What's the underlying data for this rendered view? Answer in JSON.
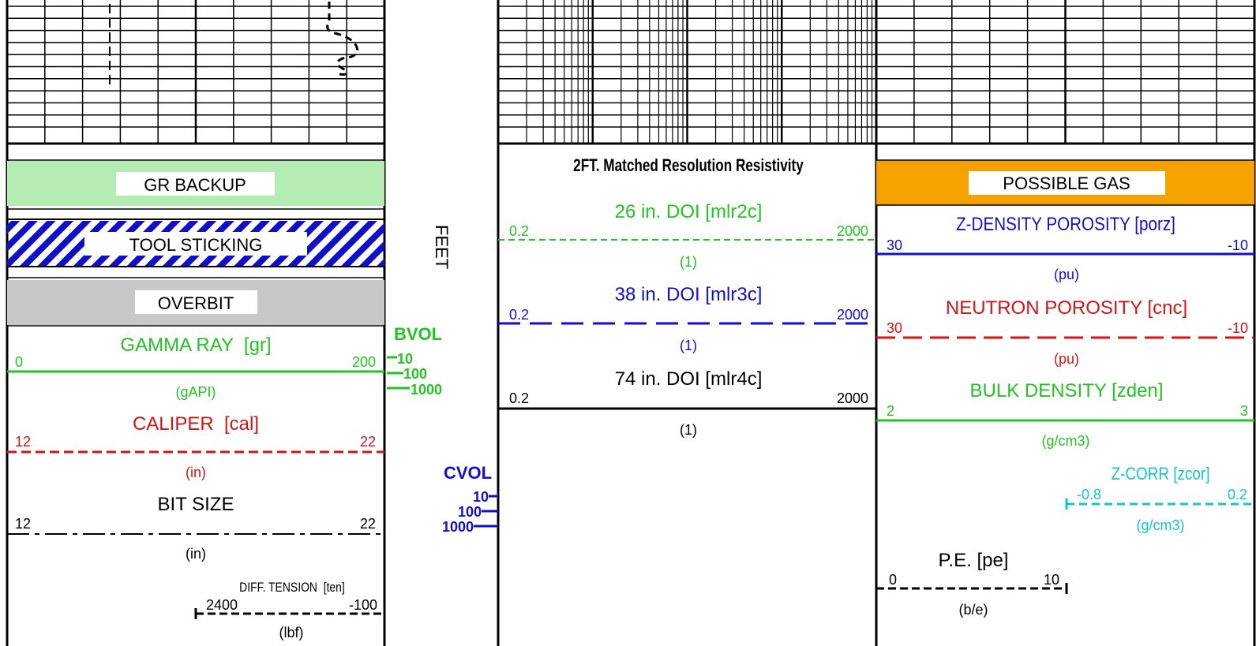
{
  "colors": {
    "green": "#22c322",
    "red": "#d01515",
    "blue": "#1010c8",
    "cyan": "#10c8c8",
    "black": "#000000",
    "gr_backup_fill": "#b4ecb4",
    "possible_gas_fill": "#f5a100",
    "overbit_fill": "#c8c8c8"
  },
  "left_track": {
    "legend_boxes": {
      "gr_backup": "GR BACKUP",
      "tool_sticking": "TOOL STICKING",
      "overbit": "OVERBIT"
    },
    "curves": {
      "gamma_ray": {
        "title": "GAMMA RAY  [gr]",
        "min": "0",
        "max": "200",
        "unit": "(gAPI)"
      },
      "caliper": {
        "title": "CALIPER  [cal]",
        "min": "12",
        "max": "22",
        "unit": "(in)"
      },
      "bit_size": {
        "title": "BIT SIZE",
        "min": "12",
        "max": "22",
        "unit": "(in)"
      },
      "diff_tension": {
        "title": "DIFF. TENSION  [ten]",
        "min": "2400",
        "max": "-100",
        "unit": "(lbf)"
      }
    }
  },
  "depth_track": {
    "label": "FEET",
    "bvol": {
      "title": "BVOL",
      "ticks": [
        "10",
        "100",
        "1000"
      ]
    },
    "cvol": {
      "title": "CVOL",
      "ticks": [
        "10",
        "100",
        "1000"
      ]
    }
  },
  "resistivity_track": {
    "title": "2FT. Matched Resolution Resistivity",
    "curves": {
      "mlr2c": {
        "title": "26 in. DOI [mlr2c]",
        "min": "0.2",
        "max": "2000",
        "unit": "(1)"
      },
      "mlr3c": {
        "title": "38 in. DOI [mlr3c]",
        "min": "0.2",
        "max": "2000",
        "unit": "(1)"
      },
      "mlr4c": {
        "title": "74 in. DOI [mlr4c]",
        "min": "0.2",
        "max": "2000",
        "unit": "(1)"
      }
    }
  },
  "porosity_track": {
    "legend_boxes": {
      "possible_gas": "POSSIBLE GAS"
    },
    "curves": {
      "porz": {
        "title": "Z-DENSITY POROSITY [porz]",
        "min": "30",
        "max": "-10",
        "unit": "(pu)"
      },
      "cnc": {
        "title": "NEUTRON POROSITY [cnc]",
        "min": "30",
        "max": "-10",
        "unit": "(pu)"
      },
      "zden": {
        "title": "BULK DENSITY [zden]",
        "min": "2",
        "max": "3",
        "unit": "(g/cm3)"
      },
      "zcor": {
        "title": "Z-CORR [zcor]",
        "min": "-0.8",
        "max": "0.2",
        "unit": "(g/cm3)"
      },
      "pe": {
        "title": "P.E. [pe]",
        "min": "0",
        "max": "10",
        "unit": "(b/e)"
      }
    }
  }
}
